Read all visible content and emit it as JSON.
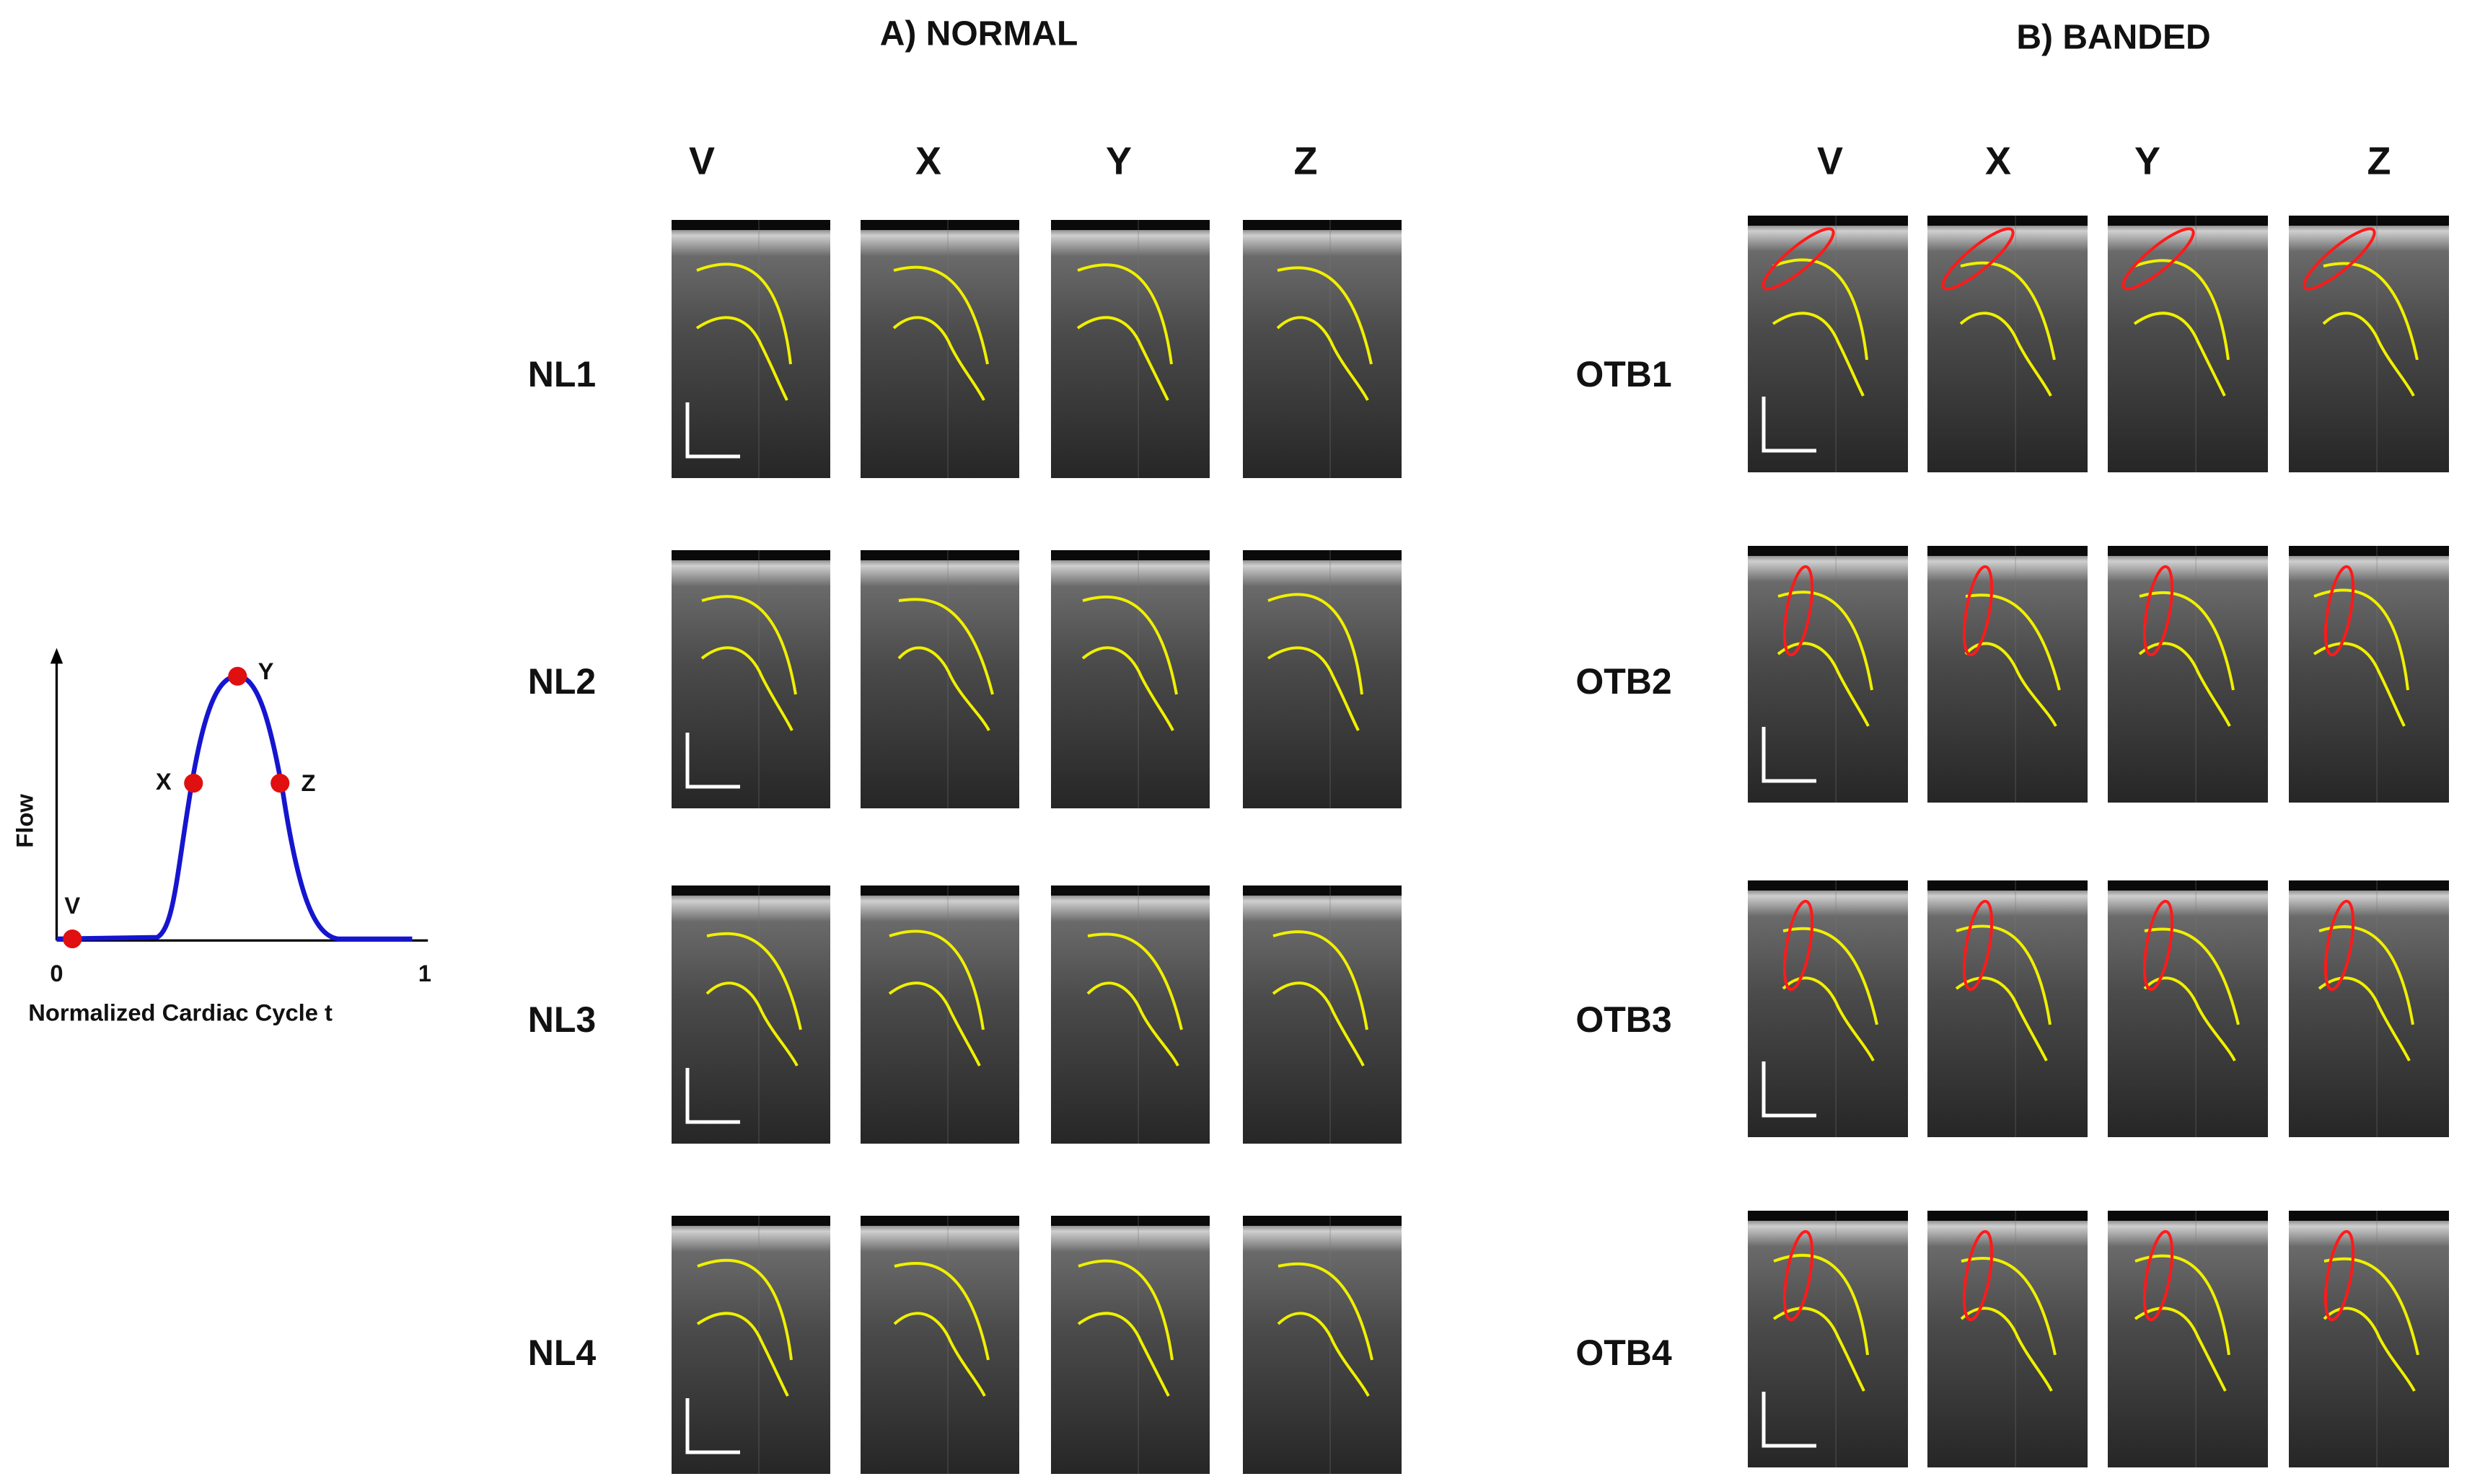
{
  "panels": [
    {
      "title": "A) NORMAL",
      "columns": [
        "V",
        "X",
        "Y",
        "Z"
      ],
      "rows": [
        "NL1",
        "NL2",
        "NL3",
        "NL4"
      ]
    },
    {
      "title": "B) BANDED",
      "columns": [
        "V",
        "X",
        "Y",
        "Z"
      ],
      "rows": [
        "OTB1",
        "OTB2",
        "OTB3",
        "OTB4"
      ]
    }
  ],
  "inset": {
    "y_label": "Flow",
    "x_label": "Normalized Cardiac Cycle t",
    "x_ticks": [
      "0",
      "1"
    ],
    "points": [
      "V",
      "X",
      "Y",
      "Z"
    ]
  }
}
